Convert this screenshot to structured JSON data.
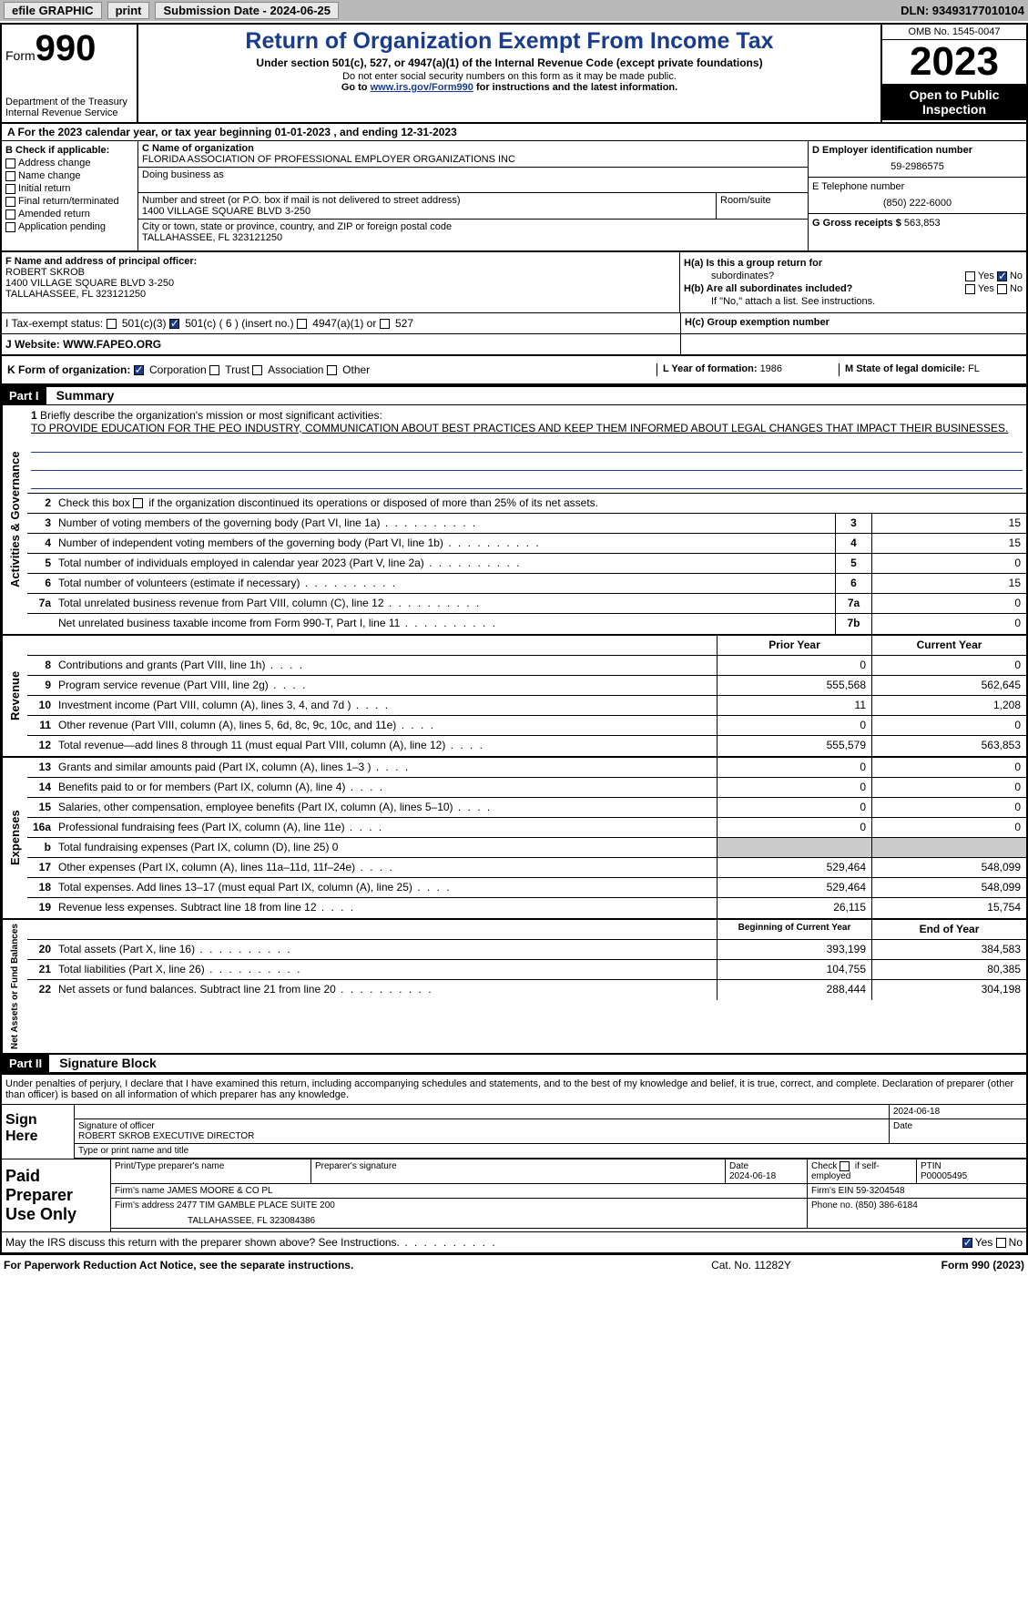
{
  "topbar": {
    "efile": "efile GRAPHIC",
    "print": "print",
    "submission_label": "Submission Date - 2024-06-25",
    "dln": "DLN: 93493177010104"
  },
  "header": {
    "form_prefix": "Form",
    "form_number": "990",
    "title": "Return of Organization Exempt From Income Tax",
    "subtitle": "Under section 501(c), 527, or 4947(a)(1) of the Internal Revenue Code (except private foundations)",
    "note1": "Do not enter social security numbers on this form as it may be made public.",
    "note2_prefix": "Go to ",
    "note2_link": "www.irs.gov/Form990",
    "note2_suffix": " for instructions and the latest information.",
    "dept": "Department of the Treasury",
    "irs": "Internal Revenue Service",
    "omb": "OMB No. 1545-0047",
    "year": "2023",
    "open_public": "Open to Public Inspection"
  },
  "period": {
    "text_a": "A  For the 2023 calendar year, or tax year beginning 01-01-2023    , and ending 12-31-2023"
  },
  "section_b": {
    "header": "B Check if applicable:",
    "address_change": "Address change",
    "name_change": "Name change",
    "initial_return": "Initial return",
    "final_return": "Final return/terminated",
    "amended": "Amended return",
    "application": "Application pending"
  },
  "section_c": {
    "name_label": "C Name of organization",
    "name": "FLORIDA ASSOCIATION OF PROFESSIONAL EMPLOYER ORGANIZATIONS INC",
    "dba_label": "Doing business as",
    "dba": "",
    "street_label": "Number and street (or P.O. box if mail is not delivered to street address)",
    "street": "1400 VILLAGE SQUARE BLVD 3-250",
    "room_label": "Room/suite",
    "room": "",
    "city_label": "City or town, state or province, country, and ZIP or foreign postal code",
    "city": "TALLAHASSEE, FL  323121250"
  },
  "section_d": {
    "ein_label": "D Employer identification number",
    "ein": "59-2986575",
    "phone_label": "E Telephone number",
    "phone": "(850) 222-6000",
    "receipts_label": "G Gross receipts $ ",
    "receipts": "563,853"
  },
  "section_f": {
    "label": "F  Name and address of principal officer:",
    "name": "ROBERT SKROB",
    "street": "1400 VILLAGE SQUARE BLVD 3-250",
    "city": "TALLAHASSEE, FL  323121250"
  },
  "section_h": {
    "ha_label": "H(a)  Is this a group return for",
    "ha_sub": "subordinates?",
    "hb_label": "H(b)  Are all subordinates included?",
    "hb_note": "If \"No,\" attach a list. See instructions.",
    "hc_label": "H(c)  Group exemption number  "
  },
  "section_i": {
    "label": "I    Tax-exempt status:",
    "opt1": "501(c)(3)",
    "opt2": "501(c) ( 6 ) (insert no.)",
    "opt3": "4947(a)(1) or",
    "opt4": "527"
  },
  "section_j": {
    "label": "J    Website: ",
    "value": "  WWW.FAPEO.ORG"
  },
  "section_k": {
    "label": "K Form of organization:",
    "corp": "Corporation",
    "trust": "Trust",
    "assoc": "Association",
    "other": "Other"
  },
  "section_l": {
    "label": "L Year of formation: ",
    "value": "1986"
  },
  "section_m": {
    "label": "M State of legal domicile: ",
    "value": "FL"
  },
  "part1": {
    "header": "Part I",
    "title": "Summary",
    "line1_label": "Briefly describe the organization's mission or most significant activities:",
    "line1_text": "TO PROVIDE EDUCATION FOR THE PEO INDUSTRY, COMMUNICATION ABOUT BEST PRACTICES AND KEEP THEM INFORMED ABOUT LEGAL CHANGES THAT IMPACT THEIR BUSINESSES.",
    "line2": "Check this box       if the organization discontinued its operations or disposed of more than 25% of its net assets.",
    "governance": {
      "label": "Activities & Governance",
      "lines": [
        {
          "n": "3",
          "t": "Number of voting members of the governing body (Part VI, line 1a)",
          "box": "3",
          "v": "15"
        },
        {
          "n": "4",
          "t": "Number of independent voting members of the governing body (Part VI, line 1b)",
          "box": "4",
          "v": "15"
        },
        {
          "n": "5",
          "t": "Total number of individuals employed in calendar year 2023 (Part V, line 2a)",
          "box": "5",
          "v": "0"
        },
        {
          "n": "6",
          "t": "Total number of volunteers (estimate if necessary)",
          "box": "6",
          "v": "15"
        },
        {
          "n": "7a",
          "t": "Total unrelated business revenue from Part VIII, column (C), line 12",
          "box": "7a",
          "v": "0"
        },
        {
          "n": "",
          "t": "Net unrelated business taxable income from Form 990-T, Part I, line 11",
          "box": "7b",
          "v": "0"
        }
      ]
    },
    "revenue": {
      "label": "Revenue",
      "prior_header": "Prior Year",
      "current_header": "Current Year",
      "lines": [
        {
          "n": "8",
          "t": "Contributions and grants (Part VIII, line 1h)",
          "p": "0",
          "c": "0"
        },
        {
          "n": "9",
          "t": "Program service revenue (Part VIII, line 2g)",
          "p": "555,568",
          "c": "562,645"
        },
        {
          "n": "10",
          "t": "Investment income (Part VIII, column (A), lines 3, 4, and 7d )",
          "p": "11",
          "c": "1,208"
        },
        {
          "n": "11",
          "t": "Other revenue (Part VIII, column (A), lines 5, 6d, 8c, 9c, 10c, and 11e)",
          "p": "0",
          "c": "0"
        },
        {
          "n": "12",
          "t": "Total revenue—add lines 8 through 11 (must equal Part VIII, column (A), line 12)",
          "p": "555,579",
          "c": "563,853"
        }
      ]
    },
    "expenses": {
      "label": "Expenses",
      "lines": [
        {
          "n": "13",
          "t": "Grants and similar amounts paid (Part IX, column (A), lines 1–3 )",
          "p": "0",
          "c": "0"
        },
        {
          "n": "14",
          "t": "Benefits paid to or for members (Part IX, column (A), line 4)",
          "p": "0",
          "c": "0"
        },
        {
          "n": "15",
          "t": "Salaries, other compensation, employee benefits (Part IX, column (A), lines 5–10)",
          "p": "0",
          "c": "0"
        },
        {
          "n": "16a",
          "t": "Professional fundraising fees (Part IX, column (A), line 11e)",
          "p": "0",
          "c": "0"
        },
        {
          "n": "b",
          "t": "Total fundraising expenses (Part IX, column (D), line 25) 0",
          "p": "",
          "c": "",
          "gray": true
        },
        {
          "n": "17",
          "t": "Other expenses (Part IX, column (A), lines 11a–11d, 11f–24e)",
          "p": "529,464",
          "c": "548,099"
        },
        {
          "n": "18",
          "t": "Total expenses. Add lines 13–17 (must equal Part IX, column (A), line 25)",
          "p": "529,464",
          "c": "548,099"
        },
        {
          "n": "19",
          "t": "Revenue less expenses. Subtract line 18 from line 12",
          "p": "26,115",
          "c": "15,754"
        }
      ]
    },
    "netassets": {
      "label": "Net Assets or Fund Balances",
      "begin_header": "Beginning of Current Year",
      "end_header": "End of Year",
      "lines": [
        {
          "n": "20",
          "t": "Total assets (Part X, line 16)",
          "p": "393,199",
          "c": "384,583"
        },
        {
          "n": "21",
          "t": "Total liabilities (Part X, line 26)",
          "p": "104,755",
          "c": "80,385"
        },
        {
          "n": "22",
          "t": "Net assets or fund balances. Subtract line 21 from line 20",
          "p": "288,444",
          "c": "304,198"
        }
      ]
    }
  },
  "part2": {
    "header": "Part II",
    "title": "Signature Block",
    "declaration": "Under penalties of perjury, I declare that I have examined this return, including accompanying schedules and statements, and to the best of my knowledge and belief, it is true, correct, and complete. Declaration of preparer (other than officer) is based on all information of which preparer has any knowledge.",
    "sign_here": "Sign Here",
    "sig_label": "Signature of officer",
    "sig_date": "2024-06-18",
    "officer_name": "ROBERT SKROB  EXECUTIVE DIRECTOR",
    "type_label": "Type or print name and title",
    "date_label": "Date",
    "paid_preparer": "Paid Preparer Use Only",
    "prep_name_label": "Print/Type preparer's name",
    "prep_sig_label": "Preparer's signature",
    "prep_date": "2024-06-18",
    "check_self": "Check        if self-employed",
    "ptin_label": "PTIN",
    "ptin": "P00005495",
    "firm_name_label": "Firm's name   ",
    "firm_name": "JAMES MOORE & CO PL",
    "firm_ein_label": "Firm's EIN  ",
    "firm_ein": "59-3204548",
    "firm_addr_label": "Firm's address ",
    "firm_addr1": "2477 TIM GAMBLE PLACE SUITE 200",
    "firm_addr2": "TALLAHASSEE, FL  323084386",
    "firm_phone_label": "Phone no. ",
    "firm_phone": "(850) 386-6184",
    "discuss": "May the IRS discuss this return with the preparer shown above? See Instructions."
  },
  "footer": {
    "left": "For Paperwork Reduction Act Notice, see the separate instructions.",
    "mid": "Cat. No. 11282Y",
    "right": "Form 990 (2023)"
  },
  "yesno": {
    "yes": "Yes",
    "no": "No"
  }
}
